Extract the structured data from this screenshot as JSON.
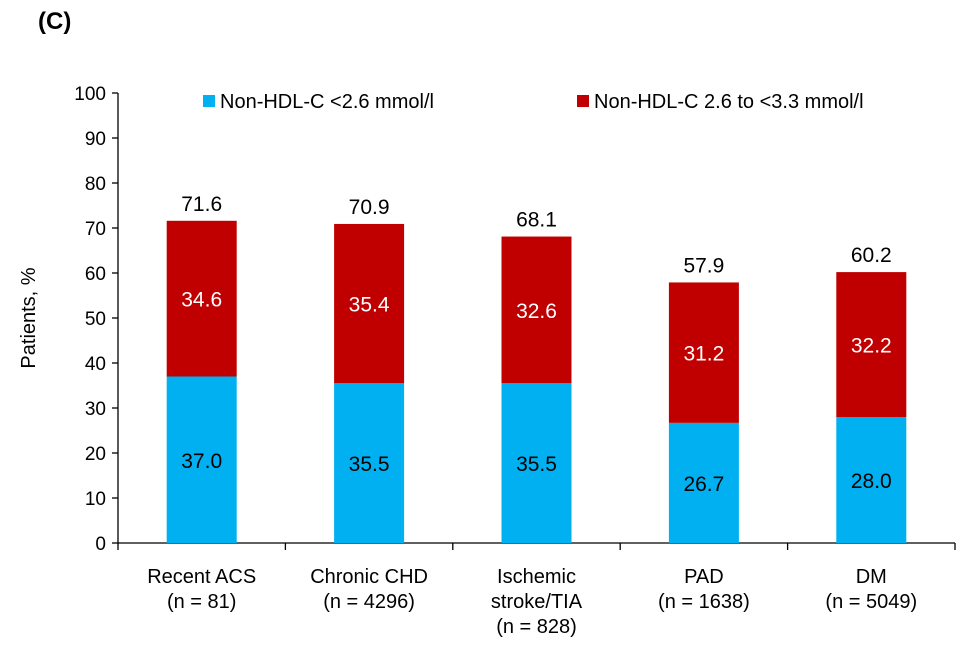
{
  "panel_label": "(C)",
  "chart_data": {
    "type": "bar",
    "stacked": true,
    "ylabel": "Patients, %",
    "ylim": [
      0,
      100
    ],
    "yticks": [
      0,
      10,
      20,
      30,
      40,
      50,
      60,
      70,
      80,
      90,
      100
    ],
    "categories": [
      [
        "Recent ACS",
        "(n = 81)"
      ],
      [
        "Chronic CHD",
        "(n = 4296)"
      ],
      [
        "Ischemic",
        "stroke/TIA",
        "(n = 828)"
      ],
      [
        "PAD",
        "(n = 1638)"
      ],
      [
        "DM",
        "(n = 5049)"
      ]
    ],
    "series": [
      {
        "name": "Non-HDL-C <2.6 mmol/l",
        "color": "#00B0F0",
        "label_color": "#000000",
        "values": [
          37.0,
          35.5,
          35.5,
          26.7,
          28.0
        ],
        "labels": [
          "37.0",
          "35.5",
          "35.5",
          "26.7",
          "28.0"
        ]
      },
      {
        "name": "Non-HDL-C 2.6 to <3.3 mmol/l",
        "color": "#C00000",
        "label_color": "#ffffff",
        "values": [
          34.6,
          35.4,
          32.6,
          31.2,
          32.2
        ],
        "labels": [
          "34.6",
          "35.4",
          "32.6",
          "31.2",
          "32.2"
        ]
      }
    ],
    "totals": [
      71.6,
      70.9,
      68.1,
      57.9,
      60.2
    ],
    "total_labels": [
      "71.6",
      "70.9",
      "68.1",
      "57.9",
      "60.2"
    ],
    "legend_position": "top",
    "grid": false
  }
}
